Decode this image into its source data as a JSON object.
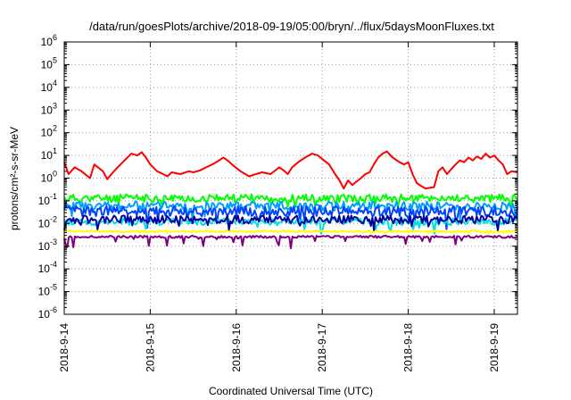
{
  "chart_data": {
    "type": "line",
    "title": "/data/run/goesPlots/archive/2018-09-19/05:00/bryn/../flux/5daysMoonFluxes.txt",
    "xlabel": "Coordinated Universal Time (UTC)",
    "ylabel": "protons/cm²-s-sr-MeV",
    "y_scale": "log",
    "ylim_exp": [
      -6,
      6
    ],
    "y_tick_exponents": [
      -6,
      -5,
      -4,
      -3,
      -2,
      -1,
      0,
      1,
      2,
      3,
      4,
      5,
      6
    ],
    "xlim_days": [
      0,
      5.27
    ],
    "x_ticks": [
      {
        "label": "2018-9-14",
        "day": 0
      },
      {
        "label": "2018-9-15",
        "day": 1
      },
      {
        "label": "2018-9-16",
        "day": 2
      },
      {
        "label": "2018-9-17",
        "day": 3
      },
      {
        "label": "2018-9-18",
        "day": 4
      },
      {
        "label": "2018-9-19",
        "day": 5
      }
    ],
    "grid": true,
    "series": [
      {
        "color": "#ff0000",
        "style": "red",
        "points": [
          [
            0,
            5
          ],
          [
            0.05,
            1.5
          ],
          [
            0.12,
            3
          ],
          [
            0.2,
            2
          ],
          [
            0.3,
            1
          ],
          [
            0.35,
            4
          ],
          [
            0.45,
            2
          ],
          [
            0.5,
            0.9
          ],
          [
            0.55,
            1.5
          ],
          [
            0.62,
            3
          ],
          [
            0.7,
            6
          ],
          [
            0.78,
            12
          ],
          [
            0.85,
            10
          ],
          [
            0.9,
            14
          ],
          [
            0.95,
            8
          ],
          [
            1,
            4
          ],
          [
            1.08,
            2
          ],
          [
            1.15,
            1.5
          ],
          [
            1.2,
            1.2
          ],
          [
            1.25,
            1.8
          ],
          [
            1.35,
            1.5
          ],
          [
            1.45,
            2
          ],
          [
            1.5,
            1.8
          ],
          [
            1.58,
            2.2
          ],
          [
            1.65,
            3
          ],
          [
            1.72,
            4
          ],
          [
            1.8,
            6
          ],
          [
            1.85,
            8
          ],
          [
            1.9,
            6
          ],
          [
            1.95,
            4
          ],
          [
            2.05,
            2
          ],
          [
            2.15,
            1.2
          ],
          [
            2.2,
            1.4
          ],
          [
            2.3,
            1.8
          ],
          [
            2.4,
            1.5
          ],
          [
            2.5,
            3
          ],
          [
            2.55,
            2.2
          ],
          [
            2.6,
            1.5
          ],
          [
            2.65,
            3
          ],
          [
            2.72,
            5
          ],
          [
            2.8,
            8
          ],
          [
            2.88,
            12
          ],
          [
            2.95,
            10
          ],
          [
            3.02,
            6
          ],
          [
            3.08,
            4
          ],
          [
            3.15,
            1.5
          ],
          [
            3.2,
            0.8
          ],
          [
            3.25,
            0.35
          ],
          [
            3.3,
            0.8
          ],
          [
            3.35,
            0.5
          ],
          [
            3.45,
            1.0
          ],
          [
            3.5,
            1.5
          ],
          [
            3.55,
            1.8
          ],
          [
            3.6,
            4
          ],
          [
            3.65,
            8
          ],
          [
            3.7,
            12
          ],
          [
            3.75,
            15
          ],
          [
            3.82,
            8
          ],
          [
            3.9,
            5
          ],
          [
            3.95,
            4
          ],
          [
            4.0,
            5
          ],
          [
            4.05,
            1.5
          ],
          [
            4.1,
            0.6
          ],
          [
            4.15,
            0.45
          ],
          [
            4.2,
            0.35
          ],
          [
            4.3,
            0.4
          ],
          [
            4.35,
            2
          ],
          [
            4.4,
            3
          ],
          [
            4.45,
            1.5
          ],
          [
            4.5,
            2.5
          ],
          [
            4.55,
            4
          ],
          [
            4.6,
            6
          ],
          [
            4.65,
            5
          ],
          [
            4.7,
            8
          ],
          [
            4.75,
            6
          ],
          [
            4.8,
            9
          ],
          [
            4.85,
            7
          ],
          [
            4.9,
            12
          ],
          [
            4.95,
            8
          ],
          [
            5.0,
            10
          ],
          [
            5.05,
            6
          ],
          [
            5.1,
            4
          ],
          [
            5.15,
            1.5
          ],
          [
            5.2,
            2
          ],
          [
            5.27,
            1.8
          ]
        ]
      },
      {
        "color": "#00ff00",
        "style": "green",
        "base": 0.13,
        "amp": 0.35,
        "dip": 0.45,
        "seed": 11
      },
      {
        "color": "#00a0ff",
        "style": "lightblue",
        "base": 0.06,
        "amp": 0.4,
        "dip": 0.6,
        "seed": 23
      },
      {
        "color": "#0044ff",
        "style": "blue",
        "base": 0.035,
        "amp": 0.45,
        "dip": 0.7,
        "seed": 37
      },
      {
        "color": "#00e0e0",
        "style": "cyan",
        "base": 0.012,
        "amp": 0.3,
        "dip": 0.5,
        "seed": 41
      },
      {
        "color": "#0000a0",
        "style": "navy",
        "base": 0.015,
        "amp": 0.35,
        "dip": 0.55,
        "seed": 53
      },
      {
        "color": "#ffff00",
        "style": "yellow",
        "base": 0.0045,
        "amp": 0.08,
        "dip": 0.1,
        "seed": 61
      },
      {
        "color": "#800080",
        "style": "purple",
        "base": 0.0026,
        "amp": 0.1,
        "dip": 0.5,
        "seed": 71
      }
    ]
  }
}
